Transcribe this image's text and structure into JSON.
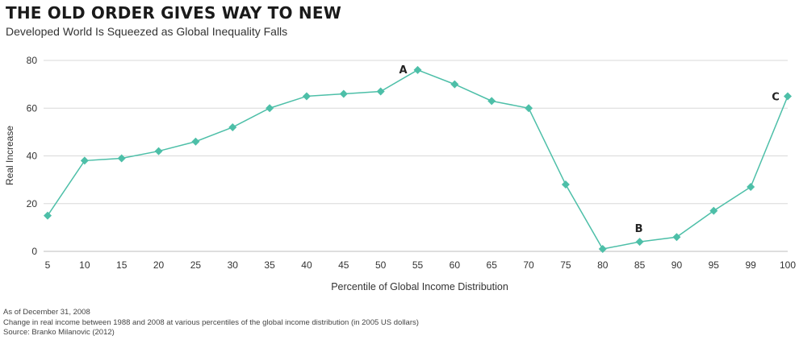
{
  "header": {
    "title": "THE OLD ORDER GIVES WAY TO NEW",
    "subtitle": "Developed World Is Squeezed as Global Inequality Falls"
  },
  "chart_data": {
    "type": "line",
    "title": "THE OLD ORDER GIVES WAY TO NEW",
    "subtitle": "Developed World Is Squeezed as Global Inequality Falls",
    "xlabel": "Percentile of Global Income Distribution",
    "ylabel": "Real Increase",
    "categories": [
      "5",
      "10",
      "15",
      "20",
      "25",
      "30",
      "35",
      "40",
      "45",
      "50",
      "55",
      "60",
      "65",
      "70",
      "75",
      "80",
      "85",
      "90",
      "95",
      "99",
      "100"
    ],
    "values": [
      15,
      38,
      39,
      42,
      46,
      52,
      60,
      65,
      66,
      67,
      76,
      70,
      63,
      60,
      28,
      1,
      4,
      6,
      17,
      27,
      65
    ],
    "ylim": [
      0,
      80
    ],
    "yticks": [
      0,
      20,
      40,
      60,
      80
    ],
    "grid": true,
    "color": "#4dbfa8",
    "annotations": [
      {
        "label": "A",
        "category": "55"
      },
      {
        "label": "B",
        "category": "85"
      },
      {
        "label": "C",
        "category": "100"
      }
    ]
  },
  "footnotes": {
    "date": "As of December 31, 2008",
    "description": "Change in real income between 1988 and 2008 at various percentiles of the global income distribution (in 2005 US dollars)",
    "source": "Source: Branko Milanovic (2012)"
  }
}
